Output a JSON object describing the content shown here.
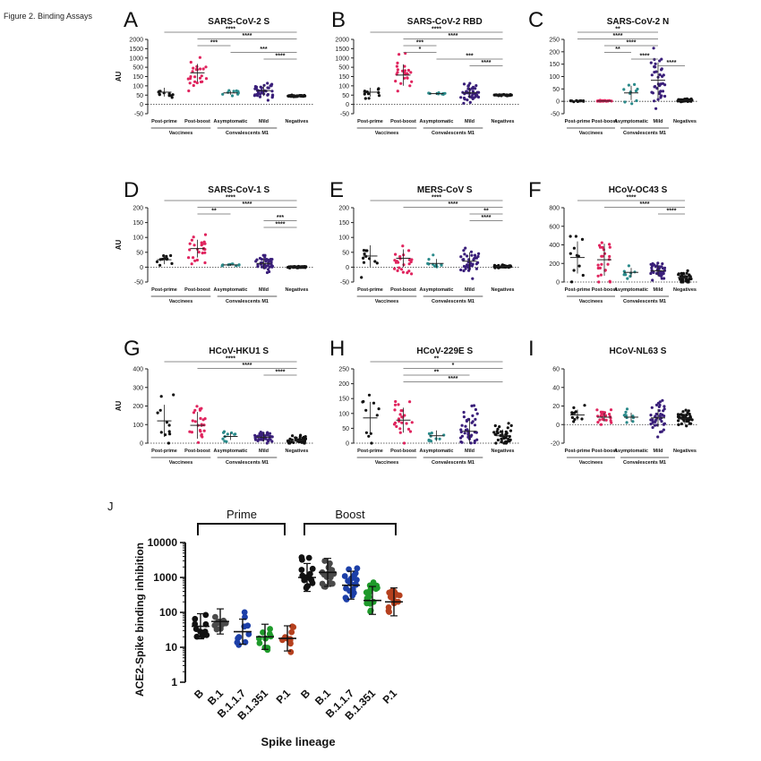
{
  "figure_title": "Figure 2. Binding Assays",
  "palette": {
    "black": "#111111",
    "pink": "#e0245e",
    "teal": "#2a8a8a",
    "purple": "#3a1f7a",
    "dark": "#333333",
    "ink": "#4a4a4a",
    "blue": "#1c3fa8",
    "green": "#1e9a2a",
    "brown": "#b5401e"
  },
  "groups": [
    "Post-prime",
    "Post-boost",
    "Asymptomatic",
    "Mild",
    "Negatives"
  ],
  "group_colors": [
    "black",
    "pink",
    "teal",
    "purple",
    "black"
  ],
  "brackets": {
    "vaccinees": "Vaccinees",
    "convalescents": "Convalescents M1"
  },
  "panels": [
    {
      "label": "A",
      "title": "SARS-CoV-2 S",
      "ylabel": "AU",
      "ticks": [
        "-50",
        "0",
        "50",
        "100",
        "150",
        "500",
        "1000",
        "1500",
        "2000"
      ],
      "sig": [
        {
          "from": 0,
          "to": 4,
          "text": "****"
        },
        {
          "from": 1,
          "to": 4,
          "text": "****"
        },
        {
          "from": 1,
          "to": 2,
          "text": "***"
        },
        {
          "from": 2,
          "to": 4,
          "text": "***"
        },
        {
          "from": 3,
          "to": 4,
          "text": "****"
        }
      ]
    },
    {
      "label": "B",
      "title": "SARS-CoV-2 RBD",
      "ylabel": "",
      "ticks": [
        "-50",
        "0",
        "50",
        "100",
        "150",
        "500",
        "1000",
        "1500",
        "2000"
      ],
      "sig": [
        {
          "from": 0,
          "to": 4,
          "text": "****"
        },
        {
          "from": 1,
          "to": 4,
          "text": "****"
        },
        {
          "from": 1,
          "to": 2,
          "text": "***"
        },
        {
          "from": 1,
          "to": 2,
          "text": "*"
        },
        {
          "from": 2,
          "to": 4,
          "text": "***"
        },
        {
          "from": 3,
          "to": 4,
          "text": "****"
        }
      ]
    },
    {
      "label": "C",
      "title": "SARS-CoV-2 N",
      "ylabel": "",
      "ticks": [
        "-50",
        "0",
        "50",
        "100",
        "150",
        "200",
        "250"
      ],
      "sig": [
        {
          "from": 0,
          "to": 3,
          "text": "**"
        },
        {
          "from": 0,
          "to": 3,
          "text": "****"
        },
        {
          "from": 1,
          "to": 3,
          "text": "****"
        },
        {
          "from": 1,
          "to": 2,
          "text": "**"
        },
        {
          "from": 2,
          "to": 3,
          "text": "****"
        },
        {
          "from": 3,
          "to": 4,
          "text": "****"
        }
      ]
    },
    {
      "label": "D",
      "title": "SARS-CoV-1 S",
      "ylabel": "AU",
      "ticks": [
        "-50",
        "0",
        "50",
        "100",
        "150",
        "200"
      ],
      "sig": [
        {
          "from": 0,
          "to": 4,
          "text": "****"
        },
        {
          "from": 1,
          "to": 4,
          "text": "****"
        },
        {
          "from": 1,
          "to": 2,
          "text": "**"
        },
        {
          "from": 3,
          "to": 4,
          "text": "***"
        },
        {
          "from": 3,
          "to": 4,
          "text": "****"
        }
      ]
    },
    {
      "label": "E",
      "title": "MERS-CoV S",
      "ylabel": "",
      "ticks": [
        "-50",
        "0",
        "50",
        "100",
        "150",
        "200"
      ],
      "sig": [
        {
          "from": 0,
          "to": 4,
          "text": "****"
        },
        {
          "from": 1,
          "to": 4,
          "text": "****"
        },
        {
          "from": 3,
          "to": 4,
          "text": "**"
        },
        {
          "from": 3,
          "to": 4,
          "text": "****"
        }
      ]
    },
    {
      "label": "F",
      "title": "HCoV-OC43 S",
      "ylabel": "",
      "ticks": [
        "0",
        "200",
        "400",
        "600",
        "800"
      ],
      "sig": [
        {
          "from": 0,
          "to": 4,
          "text": "****"
        },
        {
          "from": 1,
          "to": 4,
          "text": "****"
        },
        {
          "from": 3,
          "to": 4,
          "text": "****"
        }
      ]
    },
    {
      "label": "G",
      "title": "HCoV-HKU1 S",
      "ylabel": "AU",
      "ticks": [
        "0",
        "100",
        "200",
        "300",
        "400"
      ],
      "sig": [
        {
          "from": 0,
          "to": 4,
          "text": "****"
        },
        {
          "from": 1,
          "to": 4,
          "text": "****"
        },
        {
          "from": 3,
          "to": 4,
          "text": "****"
        }
      ]
    },
    {
      "label": "H",
      "title": "HCoV-229E S",
      "ylabel": "",
      "ticks": [
        "0",
        "50",
        "100",
        "150",
        "200",
        "250"
      ],
      "sig": [
        {
          "from": 0,
          "to": 4,
          "text": "**"
        },
        {
          "from": 1,
          "to": 4,
          "text": "*"
        },
        {
          "from": 1,
          "to": 3,
          "text": "**"
        },
        {
          "from": 1,
          "to": 4,
          "text": "****"
        }
      ]
    },
    {
      "label": "I",
      "title": "HCoV-NL63 S",
      "ylabel": "",
      "ticks": [
        "-20",
        "0",
        "20",
        "40",
        "60"
      ],
      "sig": []
    }
  ],
  "panel_j": {
    "label": "J",
    "ylabel": "ACE2-Spike binding inhibition",
    "xlabel": "Spike lineage",
    "prime_label": "Prime",
    "boost_label": "Boost",
    "ticks": [
      "1",
      "10",
      "100",
      "1000",
      "10000"
    ],
    "categories": [
      "B",
      "B.1",
      "B.1.1.7",
      "B.1.351",
      "P.1",
      "B",
      "B.1",
      "B.1.1.7",
      "B.1.351",
      "P.1"
    ],
    "colors": [
      "black",
      "ink",
      "blue",
      "green",
      "brown",
      "black",
      "ink",
      "blue",
      "green",
      "brown"
    ]
  },
  "chart_data": [
    {
      "type": "scatter",
      "title": "SARS-CoV-2 S",
      "ylabel": "AU",
      "categories": [
        "Post-prime",
        "Post-boost",
        "Asymptomatic",
        "Mild",
        "Negatives"
      ],
      "medians": [
        90,
        700,
        22,
        35,
        0
      ],
      "ylim": [
        -50,
        2000
      ],
      "scale": "broken (linear 0-150, compressed 150-2000)"
    },
    {
      "type": "scatter",
      "title": "SARS-CoV-2 RBD",
      "categories": [
        "Post-prime",
        "Post-boost",
        "Asymptomatic",
        "Mild",
        "Negatives"
      ],
      "medians": [
        35,
        350,
        5,
        12,
        0
      ],
      "ylim": [
        -50,
        2000
      ],
      "scale": "broken (linear 0-150, compressed 150-2000)"
    },
    {
      "type": "scatter",
      "title": "SARS-CoV-2 N",
      "categories": [
        "Post-prime",
        "Post-boost",
        "Asymptomatic",
        "Mild",
        "Negatives"
      ],
      "medians": [
        0,
        0,
        35,
        85,
        3
      ],
      "ylim": [
        -50,
        250
      ]
    },
    {
      "type": "scatter",
      "title": "SARS-CoV-1 S",
      "ylabel": "AU",
      "categories": [
        "Post-prime",
        "Post-boost",
        "Asymptomatic",
        "Mild",
        "Negatives"
      ],
      "medians": [
        22,
        60,
        5,
        8,
        0
      ],
      "ylim": [
        -50,
        200
      ]
    },
    {
      "type": "scatter",
      "title": "MERS-CoV S",
      "categories": [
        "Post-prime",
        "Post-boost",
        "Asymptomatic",
        "Mild",
        "Negatives"
      ],
      "medians": [
        38,
        30,
        10,
        18,
        2
      ],
      "ylim": [
        -50,
        200
      ]
    },
    {
      "type": "scatter",
      "title": "HCoV-OC43 S",
      "categories": [
        "Post-prime",
        "Post-boost",
        "Asymptomatic",
        "Mild",
        "Negatives"
      ],
      "medians": [
        265,
        240,
        100,
        120,
        50
      ],
      "ylim": [
        0,
        800
      ]
    },
    {
      "type": "scatter",
      "title": "HCoV-HKU1 S",
      "ylabel": "AU",
      "categories": [
        "Post-prime",
        "Post-boost",
        "Asymptomatic",
        "Mild",
        "Negatives"
      ],
      "medians": [
        120,
        95,
        35,
        30,
        15
      ],
      "ylim": [
        0,
        400
      ]
    },
    {
      "type": "scatter",
      "title": "HCoV-229E S",
      "categories": [
        "Post-prime",
        "Post-boost",
        "Asymptomatic",
        "Mild",
        "Negatives"
      ],
      "medians": [
        85,
        78,
        25,
        40,
        25
      ],
      "ylim": [
        0,
        250
      ]
    },
    {
      "type": "scatter",
      "title": "HCoV-NL63 S",
      "categories": [
        "Post-prime",
        "Post-boost",
        "Asymptomatic",
        "Mild",
        "Negatives"
      ],
      "medians": [
        11,
        9,
        9,
        8,
        6
      ],
      "ylim": [
        -20,
        60
      ]
    },
    {
      "type": "scatter",
      "title": "",
      "ylabel": "ACE2-Spike binding inhibition",
      "xlabel": "Spike lineage",
      "yscale": "log",
      "ylim": [
        1,
        10000
      ],
      "categories": [
        "B",
        "B.1",
        "B.1.1.7",
        "B.1.351",
        "P.1",
        "B",
        "B.1",
        "B.1.1.7",
        "B.1.351",
        "P.1"
      ],
      "medians": [
        40,
        55,
        28,
        20,
        18,
        1000,
        1400,
        600,
        220,
        200
      ],
      "groups": {
        "Prime": [
          0,
          4
        ],
        "Boost": [
          5,
          9
        ]
      }
    }
  ]
}
